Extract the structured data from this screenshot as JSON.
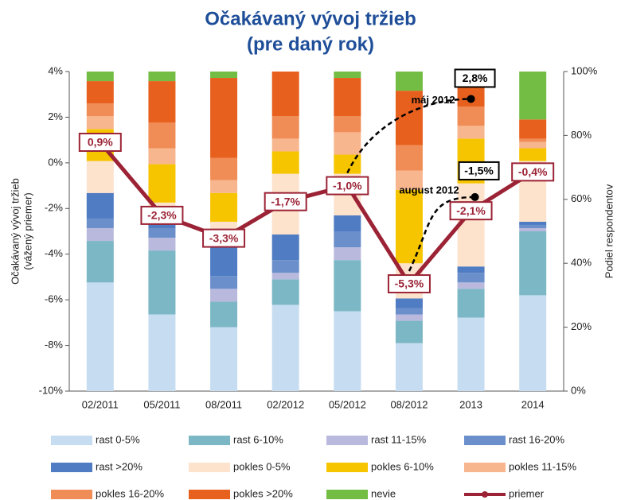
{
  "chart_data": {
    "type": "bar",
    "stacked": true,
    "title": [
      "Očakávaný vývoj tržieb",
      "(pre daný rok)"
    ],
    "y_label": [
      "Očakávaný vývoj tržieb",
      "(vážený priemer)"
    ],
    "y2_label": "Podiel respondentov",
    "categories": [
      "02/2011",
      "05/2011",
      "08/2011",
      "02/2012",
      "05/2012",
      "08/2012",
      "2013",
      "2014"
    ],
    "ylim": [
      -10,
      4
    ],
    "yticks": [
      {
        "value": -10,
        "label": "-10%"
      },
      {
        "value": -8,
        "label": "-8%"
      },
      {
        "value": -6,
        "label": "-6%"
      },
      {
        "value": -4,
        "label": "-4%"
      },
      {
        "value": -2,
        "label": "-2%"
      },
      {
        "value": 0,
        "label": "0%"
      },
      {
        "value": 2,
        "label": "2%"
      },
      {
        "value": 4,
        "label": "4%"
      }
    ],
    "y2lim": [
      0,
      100
    ],
    "y2ticks": [
      {
        "value": 0,
        "label": "0%"
      },
      {
        "value": 20,
        "label": "20%"
      },
      {
        "value": 40,
        "label": "40%"
      },
      {
        "value": 60,
        "label": "60%"
      },
      {
        "value": 80,
        "label": "80%"
      },
      {
        "value": 100,
        "label": "100%"
      }
    ],
    "series": [
      {
        "name": "rast 0-5%",
        "color": "#c6ddf1",
        "axis": "y2",
        "values": [
          34,
          24,
          20,
          27,
          25,
          15,
          23,
          30
        ]
      },
      {
        "name": "rast 6-10%",
        "color": "#7bb7c5",
        "axis": "y2",
        "values": [
          13,
          20,
          8,
          8,
          16,
          7,
          9,
          20
        ]
      },
      {
        "name": "rast 11-15%",
        "color": "#b9b9de",
        "axis": "y2",
        "values": [
          4,
          4,
          4,
          2,
          4,
          2,
          2,
          1
        ]
      },
      {
        "name": "rast 16-20%",
        "color": "#6b8fca",
        "axis": "y2",
        "values": [
          3,
          3,
          4,
          4,
          5,
          2,
          3,
          1
        ]
      },
      {
        "name": "rast >20%",
        "color": "#4f7cc2",
        "axis": "y2",
        "values": [
          8,
          3,
          9,
          8,
          5,
          3,
          2,
          1
        ]
      },
      {
        "name": "pokles 0-5%",
        "color": "#fde2cc",
        "axis": "y2",
        "values": [
          10,
          5,
          8,
          19,
          13,
          11,
          26,
          19
        ]
      },
      {
        "name": "pokles 6-10%",
        "color": "#f6c500",
        "axis": "y2",
        "values": [
          10,
          12,
          9,
          7,
          6,
          23,
          14,
          4
        ]
      },
      {
        "name": "pokles 11-15%",
        "color": "#f7b68e",
        "axis": "y2",
        "values": [
          4,
          5,
          4,
          4,
          7,
          6,
          4,
          2
        ]
      },
      {
        "name": "pokles 16-20%",
        "color": "#f08c55",
        "axis": "y2",
        "values": [
          4,
          8,
          7,
          7,
          5,
          8,
          6,
          1
        ]
      },
      {
        "name": "pokles >20%",
        "color": "#e8601e",
        "axis": "y2",
        "values": [
          7,
          13,
          25,
          14,
          12,
          17,
          11,
          6
        ]
      },
      {
        "name": "nevie",
        "color": "#74bd44",
        "axis": "y2",
        "values": [
          3,
          3,
          2,
          0,
          2,
          6,
          0,
          15
        ]
      },
      {
        "name": "priemer",
        "color": "#9b2335",
        "type": "line",
        "values": [
          0.9,
          -2.3,
          -3.3,
          -1.7,
          -1.0,
          -5.3,
          -2.1,
          -0.4
        ],
        "value_labels": [
          "0,9%",
          "-2,3%",
          "-3,3%",
          "-1,7%",
          "-1,0%",
          "-5,3%",
          "-2,1%",
          "-0,4%"
        ]
      }
    ],
    "annotations": [
      {
        "text": "máj 2012",
        "value": 2.8,
        "value_label": "2,8%",
        "start": "05/2012",
        "end": "2013"
      },
      {
        "text": "august 2012",
        "value": -1.5,
        "value_label": "-1,5%",
        "start": "08/2012",
        "end": "2013"
      }
    ]
  }
}
